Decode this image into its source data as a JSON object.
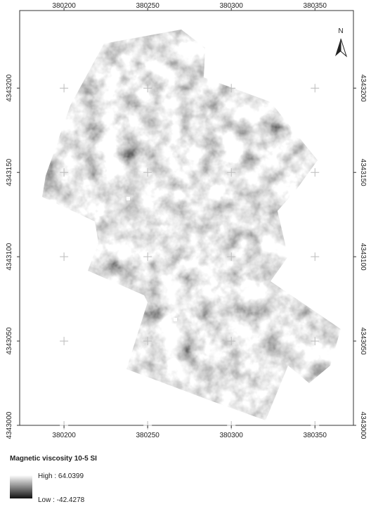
{
  "map": {
    "xlim": [
      380173.5,
      380373
    ],
    "ylim": [
      4343000,
      4343246
    ],
    "xticks": [
      380200,
      380250,
      380300,
      380350
    ],
    "yticks": [
      4343000,
      4343050,
      4343100,
      4343150,
      4343200
    ],
    "north_label": "N",
    "legend": {
      "title": "Magnetic viscosity 10-5 SI",
      "high_label": "High : 64.0399",
      "low_label": "Low : -42.4278"
    }
  }
}
